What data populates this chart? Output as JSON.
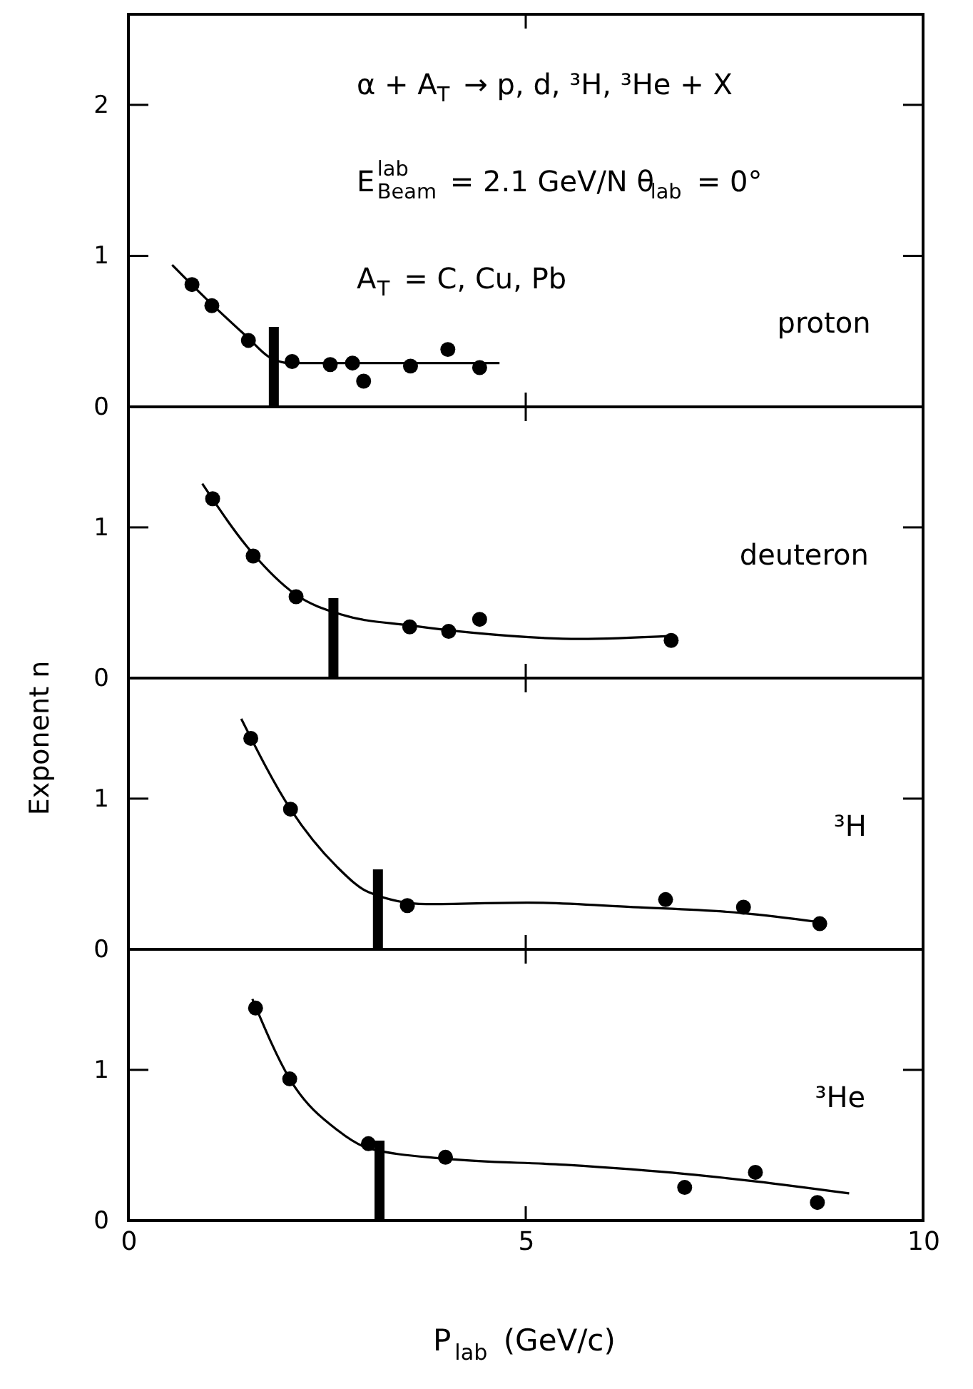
{
  "chart_data": [
    {
      "type": "scatter",
      "xlim": [
        0,
        10
      ],
      "xticks": [
        0,
        5,
        10
      ],
      "ylim": [
        0,
        2.6
      ],
      "yticks": [
        0,
        1,
        2
      ],
      "tick_labels": "y",
      "series": [
        {
          "type": "scatter",
          "marker": "circle",
          "color": "#000000",
          "x": [
            0.8,
            1.05,
            1.51,
            2.06,
            2.54,
            2.82,
            2.96,
            3.55,
            4.02,
            4.42
          ],
          "values": [
            0.81,
            0.67,
            0.44,
            0.3,
            0.28,
            0.29,
            0.17,
            0.27,
            0.38,
            0.26
          ]
        },
        {
          "type": "line",
          "marker": "none",
          "line_style": "solid",
          "color": "#000000",
          "x": [
            0.55,
            1.03,
            1.5,
            1.77,
            2.03,
            3.0,
            4.67
          ],
          "values": [
            0.94,
            0.69,
            0.46,
            0.33,
            0.29,
            0.29,
            0.29
          ]
        }
      ],
      "ref_lines": [
        {
          "axis": "x",
          "value": 1.83,
          "color": "#000000"
        }
      ],
      "annotations": [
        "α + A$_{T}$ → p, d, ³H, ³He + X",
        "E$^{lab}$$_{Beam}$ = 2.1 GeV/N θ$_{lab}$ = 0°",
        "A$_{T}$ = C, Cu, Pb",
        "proton"
      ]
    },
    {
      "type": "scatter",
      "xlim": [
        0,
        10
      ],
      "xticks": [
        0,
        5,
        10
      ],
      "ylim": [
        0,
        1.8
      ],
      "yticks": [
        0,
        1
      ],
      "tick_labels": "y",
      "series": [
        {
          "type": "scatter",
          "marker": "circle",
          "color": "#000000",
          "x": [
            1.06,
            1.57,
            2.11,
            3.54,
            4.03,
            4.42,
            6.83
          ],
          "values": [
            1.19,
            0.81,
            0.54,
            0.34,
            0.31,
            0.39,
            0.25
          ]
        },
        {
          "type": "line",
          "marker": "none",
          "line_style": "solid",
          "color": "#000000",
          "x": [
            0.93,
            1.56,
            2.09,
            2.69,
            3.54,
            4.35,
            5.68,
            6.85
          ],
          "values": [
            1.29,
            0.83,
            0.56,
            0.42,
            0.35,
            0.3,
            0.26,
            0.28
          ]
        }
      ],
      "ref_lines": [
        {
          "axis": "x",
          "value": 2.58,
          "color": "#000000"
        }
      ],
      "annotations": [
        "deuteron"
      ]
    },
    {
      "type": "scatter",
      "xlim": [
        0,
        10
      ],
      "xticks": [
        0,
        5,
        10
      ],
      "ylim": [
        0,
        1.8
      ],
      "yticks": [
        0,
        1
      ],
      "tick_labels": "y",
      "ylabel": "Exponent n",
      "series": [
        {
          "type": "scatter",
          "marker": "circle",
          "color": "#000000",
          "x": [
            1.54,
            2.04,
            3.51,
            6.76,
            7.74,
            8.7
          ],
          "values": [
            1.4,
            0.93,
            0.29,
            0.33,
            0.28,
            0.17
          ]
        },
        {
          "type": "line",
          "marker": "none",
          "line_style": "solid",
          "color": "#000000",
          "x": [
            1.42,
            2.04,
            2.62,
            3.02,
            3.75,
            5.02,
            6.35,
            7.74,
            8.7
          ],
          "values": [
            1.53,
            0.93,
            0.55,
            0.38,
            0.3,
            0.31,
            0.28,
            0.24,
            0.18
          ]
        }
      ],
      "ref_lines": [
        {
          "axis": "x",
          "value": 3.14,
          "color": "#000000"
        }
      ],
      "annotations": [
        "³H"
      ]
    },
    {
      "type": "scatter",
      "xlim": [
        0,
        10
      ],
      "xticks": [
        0,
        5,
        10
      ],
      "ylim": [
        0,
        1.8
      ],
      "yticks": [
        0,
        1
      ],
      "xlabel": "P$_{lab}$ (GeV/c)",
      "series": [
        {
          "type": "scatter",
          "marker": "circle",
          "color": "#000000",
          "x": [
            1.6,
            2.03,
            3.02,
            3.99,
            7.0,
            7.89,
            8.67
          ],
          "values": [
            1.41,
            0.94,
            0.51,
            0.42,
            0.22,
            0.32,
            0.12
          ]
        },
        {
          "type": "line",
          "marker": "none",
          "line_style": "solid",
          "color": "#000000",
          "x": [
            1.56,
            2.03,
            2.63,
            3.02,
            3.99,
            5.5,
            7.0,
            7.89,
            9.07
          ],
          "values": [
            1.47,
            0.94,
            0.6,
            0.48,
            0.41,
            0.37,
            0.31,
            0.26,
            0.18
          ]
        }
      ],
      "ref_lines": [
        {
          "axis": "x",
          "value": 3.16,
          "color": "#000000"
        }
      ],
      "annotations": [
        "³He"
      ]
    }
  ]
}
